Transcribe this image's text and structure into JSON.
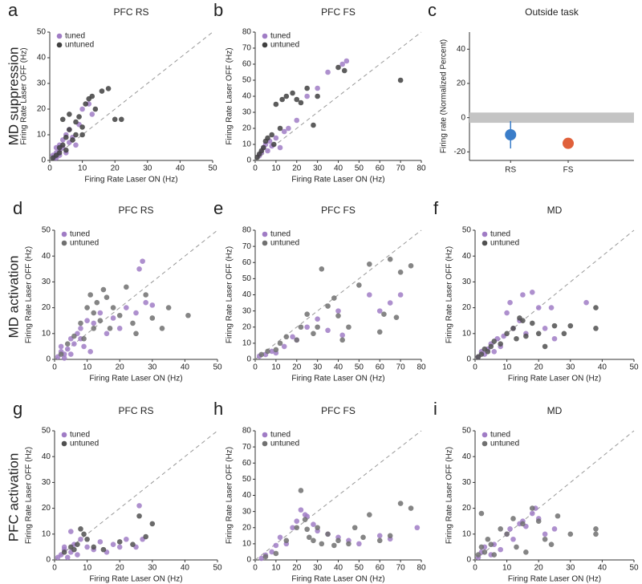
{
  "row_labels": [
    "MD suppression",
    "MD activation",
    "PFC activation"
  ],
  "chart_data": [
    {
      "type": "scatter",
      "label": "a",
      "title": "PFC RS",
      "xlabel": "Firing Rate Laser ON (Hz)",
      "ylabel": "Firing Rate Laser OFF (Hz)",
      "xlim": [
        0,
        50
      ],
      "ylim": [
        0,
        50
      ],
      "xticks": [
        0,
        10,
        20,
        30,
        40,
        50
      ],
      "yticks": [
        0,
        10,
        20,
        30,
        40,
        50
      ],
      "series": [
        {
          "name": "tuned",
          "color": "#a07cc5",
          "x": [
            1,
            2,
            2,
            3,
            3,
            4,
            4,
            5,
            5,
            6,
            6,
            7,
            8,
            9,
            10,
            12,
            13,
            3,
            2,
            1.5
          ],
          "values": [
            2,
            3,
            1,
            4,
            6,
            5,
            8,
            3,
            10,
            7,
            12,
            9,
            6,
            14,
            20,
            22,
            18,
            2,
            5,
            1
          ]
        },
        {
          "name": "untuned",
          "color": "#404040",
          "x": [
            1,
            2,
            3,
            3,
            4,
            5,
            5,
            6,
            7,
            8,
            9,
            10,
            11,
            12,
            13,
            14,
            16,
            18,
            20,
            22,
            4,
            6,
            8,
            10
          ],
          "values": [
            1,
            2,
            3,
            5,
            6,
            4,
            9,
            12,
            8,
            15,
            17,
            13,
            22,
            24,
            25,
            20,
            27,
            28,
            16,
            16,
            16,
            18,
            10,
            10
          ]
        }
      ]
    },
    {
      "type": "scatter",
      "label": "b",
      "title": "PFC FS",
      "xlabel": "Firing Rate Laser ON (Hz)",
      "ylabel": "Firing Rate Laser OFF (Hz)",
      "xlim": [
        0,
        80
      ],
      "ylim": [
        0,
        80
      ],
      "xticks": [
        0,
        10,
        20,
        30,
        40,
        50,
        60,
        70,
        80
      ],
      "yticks": [
        0,
        10,
        20,
        30,
        40,
        50,
        60,
        70,
        80
      ],
      "series": [
        {
          "name": "tuned",
          "color": "#a07cc5",
          "x": [
            2,
            3,
            4,
            5,
            6,
            7,
            8,
            10,
            12,
            14,
            16,
            20,
            25,
            30,
            35,
            42,
            44
          ],
          "values": [
            3,
            5,
            8,
            10,
            6,
            12,
            9,
            14,
            8,
            18,
            20,
            25,
            40,
            45,
            55,
            60,
            62
          ]
        },
        {
          "name": "untuned",
          "color": "#404040",
          "x": [
            1,
            2,
            3,
            4,
            5,
            6,
            8,
            9,
            10,
            12,
            13,
            15,
            18,
            20,
            22,
            25,
            28,
            30,
            40,
            43,
            70
          ],
          "values": [
            2,
            4,
            6,
            8,
            12,
            14,
            16,
            10,
            35,
            20,
            38,
            40,
            42,
            38,
            36,
            45,
            22,
            40,
            58,
            56,
            50
          ]
        }
      ]
    },
    {
      "type": "dot",
      "label": "c",
      "title": "Outside task",
      "ylabel": "Firing rate (Normalized Percent)",
      "categories": [
        "RS",
        "FS"
      ],
      "values": [
        -10,
        -15
      ],
      "errors": [
        8,
        2
      ],
      "colors": [
        "#3a7dc9",
        "#e0603a"
      ],
      "band": [
        -3,
        3
      ],
      "ylim": [
        -25,
        50
      ],
      "yticks": [
        -20,
        0,
        20,
        40
      ]
    },
    {
      "type": "scatter",
      "label": "d",
      "title": "PFC RS",
      "xlabel": "Firing Rate Laser ON (Hz)",
      "ylabel": "Firing Rate Laser OFF (Hz)",
      "xlim": [
        0,
        50
      ],
      "ylim": [
        0,
        50
      ],
      "xticks": [
        0,
        10,
        20,
        30,
        40,
        50
      ],
      "yticks": [
        0,
        10,
        20,
        30,
        40,
        50
      ],
      "series": [
        {
          "name": "tuned",
          "color": "#a07cc5",
          "x": [
            1,
            2,
            2,
            3,
            4,
            5,
            6,
            7,
            8,
            9,
            10,
            12,
            14,
            16,
            18,
            20,
            22,
            25,
            26,
            27,
            28,
            30,
            3,
            5,
            8,
            11
          ],
          "values": [
            1,
            3,
            5,
            2,
            4,
            8,
            6,
            10,
            12,
            5,
            15,
            14,
            18,
            10,
            16,
            12,
            20,
            18,
            35,
            38,
            22,
            21,
            0.5,
            2,
            8,
            3
          ]
        },
        {
          "name": "untuned",
          "color": "#707070",
          "x": [
            2,
            4,
            6,
            8,
            10,
            11,
            12,
            13,
            14,
            15,
            16,
            17,
            18,
            20,
            22,
            24,
            25,
            28,
            30,
            33,
            35,
            41,
            9,
            12
          ],
          "values": [
            2,
            6,
            9,
            14,
            20,
            25,
            18,
            22,
            15,
            27,
            24,
            12,
            20,
            17,
            28,
            14,
            10,
            25,
            16,
            12,
            20,
            17,
            8,
            12
          ]
        }
      ]
    },
    {
      "type": "scatter",
      "label": "e",
      "title": "PFC FS",
      "xlabel": "Firing Rate Laser ON (Hz)",
      "ylabel": "Firing Rate Laser OFF (Hz)",
      "xlim": [
        0,
        80
      ],
      "ylim": [
        0,
        80
      ],
      "xticks": [
        0,
        10,
        20,
        30,
        40,
        50,
        60,
        70,
        80
      ],
      "yticks": [
        0,
        10,
        20,
        30,
        40,
        50,
        60,
        70,
        80
      ],
      "series": [
        {
          "name": "tuned",
          "color": "#a07cc5",
          "x": [
            2,
            5,
            8,
            10,
            14,
            18,
            20,
            25,
            30,
            35,
            40,
            42,
            55,
            60,
            65,
            70
          ],
          "values": [
            2,
            3,
            5,
            4,
            8,
            14,
            12,
            20,
            25,
            18,
            30,
            15,
            40,
            30,
            35,
            40
          ]
        },
        {
          "name": "untuned",
          "color": "#707070",
          "x": [
            3,
            6,
            10,
            12,
            15,
            20,
            22,
            25,
            28,
            30,
            32,
            35,
            38,
            40,
            42,
            45,
            50,
            55,
            60,
            62,
            65,
            68,
            70,
            75
          ],
          "values": [
            3,
            5,
            6,
            10,
            14,
            12,
            20,
            28,
            16,
            20,
            56,
            33,
            38,
            27,
            12,
            20,
            46,
            59,
            17,
            28,
            62,
            26,
            54,
            58
          ]
        }
      ]
    },
    {
      "type": "scatter",
      "label": "f",
      "title": "MD",
      "xlabel": "Firing Rate Laser ON (Hz)",
      "ylabel": "Firing Rate Laser OFF (Hz)",
      "xlim": [
        0,
        50
      ],
      "ylim": [
        0,
        50
      ],
      "xticks": [
        0,
        10,
        20,
        30,
        40,
        50
      ],
      "yticks": [
        0,
        10,
        20,
        30,
        40,
        50
      ],
      "series": [
        {
          "name": "tuned",
          "color": "#a07cc5",
          "x": [
            1,
            2,
            3,
            4,
            5,
            6,
            7,
            8,
            9,
            10,
            11,
            12,
            14,
            15,
            16,
            18,
            20,
            22,
            24,
            25,
            35
          ],
          "values": [
            1,
            3,
            2,
            4,
            6,
            3,
            8,
            5,
            9,
            18,
            22,
            12,
            15,
            25,
            10,
            26,
            20,
            12,
            20,
            8,
            22
          ]
        },
        {
          "name": "untuned",
          "color": "#505050",
          "x": [
            1,
            2,
            3,
            4,
            5,
            6,
            8,
            10,
            12,
            13,
            14,
            15,
            16,
            18,
            20,
            22,
            25,
            28,
            30,
            38,
            38
          ],
          "values": [
            1,
            2,
            4,
            3,
            5,
            7,
            6,
            10,
            12,
            8,
            16,
            15,
            9,
            14,
            10,
            5,
            13,
            10,
            13,
            20,
            12
          ]
        }
      ]
    },
    {
      "type": "scatter",
      "label": "g",
      "title": "PFC RS",
      "xlabel": "Firing Rate Laser ON (Hz)",
      "ylabel": "Firing Rate Laser OFF (Hz)",
      "xlim": [
        0,
        50
      ],
      "ylim": [
        0,
        50
      ],
      "xticks": [
        0,
        10,
        20,
        30,
        40,
        50
      ],
      "yticks": [
        0,
        10,
        20,
        30,
        40,
        50
      ],
      "series": [
        {
          "name": "tuned",
          "color": "#a07cc5",
          "x": [
            1,
            2,
            3,
            4,
            5,
            6,
            7,
            8,
            10,
            12,
            14,
            16,
            18,
            20,
            22,
            25,
            26,
            27,
            5,
            3
          ],
          "values": [
            1,
            2,
            4,
            1,
            3,
            6,
            2,
            8,
            5,
            4,
            7,
            3,
            6,
            5,
            8,
            5,
            21,
            8,
            11,
            5
          ]
        },
        {
          "name": "untuned",
          "color": "#505050",
          "x": [
            3,
            5,
            6,
            7,
            8,
            9,
            10,
            12,
            15,
            20,
            24,
            26,
            28,
            30
          ],
          "values": [
            3,
            5,
            4,
            6,
            12,
            10,
            8,
            5,
            4,
            7,
            6,
            17,
            9,
            14
          ]
        }
      ]
    },
    {
      "type": "scatter",
      "label": "h",
      "title": "PFC FS",
      "xlabel": "Firing Rate Laser ON (Hz)",
      "ylabel": "Firing Rate Laser OFF (Hz)",
      "xlim": [
        0,
        80
      ],
      "ylim": [
        0,
        80
      ],
      "xticks": [
        0,
        10,
        20,
        30,
        40,
        50,
        60,
        70,
        80
      ],
      "yticks": [
        0,
        10,
        20,
        30,
        40,
        50,
        60,
        70,
        80
      ],
      "series": [
        {
          "name": "tuned",
          "color": "#a07cc5",
          "x": [
            3,
            5,
            8,
            10,
            12,
            15,
            18,
            20,
            22,
            24,
            25,
            28,
            30,
            35,
            40,
            45,
            50,
            60,
            65,
            78
          ],
          "values": [
            1,
            3,
            5,
            9,
            14,
            10,
            20,
            24,
            31,
            28,
            27,
            22,
            18,
            16,
            14,
            12,
            10,
            15,
            13,
            20
          ]
        },
        {
          "name": "untuned",
          "color": "#707070",
          "x": [
            5,
            10,
            15,
            20,
            22,
            24,
            25,
            26,
            28,
            30,
            32,
            35,
            38,
            40,
            45,
            48,
            52,
            55,
            60,
            65,
            70,
            75
          ],
          "values": [
            2,
            4,
            12,
            20,
            43,
            25,
            19,
            14,
            12,
            20,
            10,
            16,
            9,
            12,
            10,
            20,
            14,
            28,
            12,
            15,
            35,
            32
          ]
        }
      ]
    },
    {
      "type": "scatter",
      "label": "i",
      "title": "MD",
      "xlabel": "Firing Rate Laser ON (Hz)",
      "ylabel": "Firing Rate Laser OFF (Hz)",
      "xlim": [
        0,
        50
      ],
      "ylim": [
        0,
        50
      ],
      "xticks": [
        0,
        10,
        20,
        30,
        40,
        50
      ],
      "yticks": [
        0,
        10,
        20,
        30,
        40,
        50
      ],
      "series": [
        {
          "name": "tuned",
          "color": "#a07cc5",
          "x": [
            1,
            2,
            3,
            5,
            6,
            8,
            10,
            11,
            12,
            14,
            15,
            16,
            18,
            19,
            20,
            22,
            25
          ],
          "values": [
            1,
            3,
            5,
            2,
            6,
            4,
            10,
            12,
            8,
            14,
            15,
            13,
            18,
            20,
            16,
            10,
            12
          ]
        },
        {
          "name": "untuned",
          "color": "#707070",
          "x": [
            1,
            2,
            3,
            4,
            5,
            6,
            8,
            10,
            12,
            13,
            15,
            16,
            18,
            20,
            22,
            24,
            26,
            30,
            38,
            38,
            2
          ],
          "values": [
            2,
            5,
            3,
            8,
            6,
            2,
            12,
            10,
            16,
            5,
            14,
            3,
            20,
            15,
            8,
            6,
            17,
            10,
            12,
            10,
            18
          ]
        }
      ]
    }
  ]
}
